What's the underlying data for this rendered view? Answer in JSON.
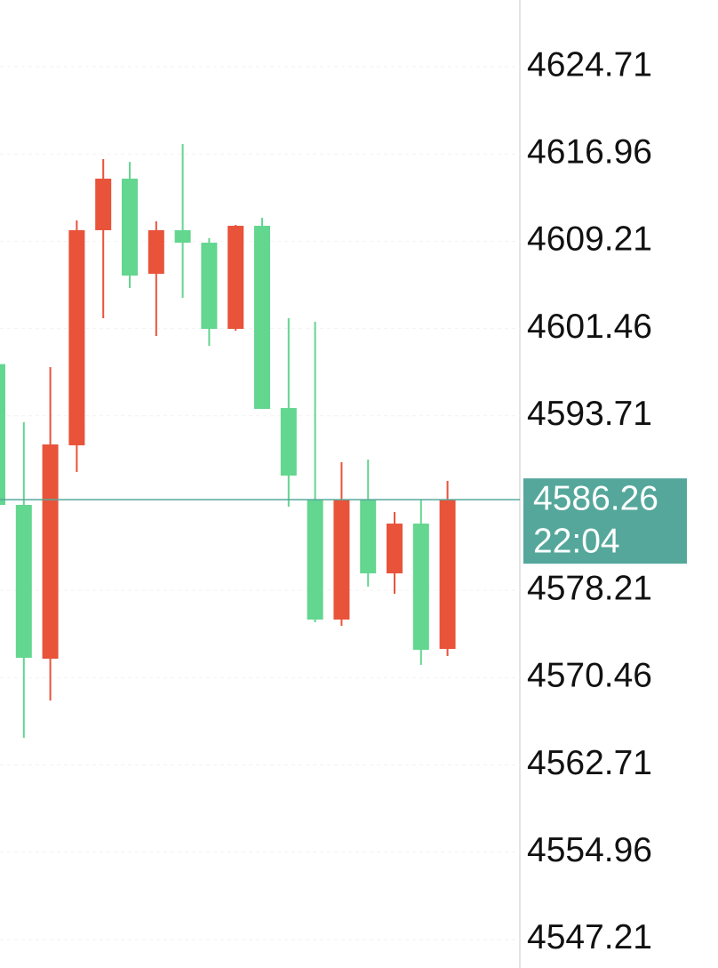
{
  "chart_data": {
    "type": "candlestick",
    "up_color": "#63d68f",
    "down_color": "#e8533a",
    "grid": true,
    "ylim": [
      4544.68,
      4630.63
    ],
    "yticks": [
      4624.71,
      4616.96,
      4609.21,
      4601.46,
      4593.71,
      4578.21,
      4570.46,
      4562.71,
      4554.96,
      4547.21
    ],
    "last_price": 4586.26,
    "last_time": "22:04",
    "last_color": "#55a79b",
    "candles": [
      {
        "open": 4585.8,
        "high": 4598.3,
        "low": 4585.8,
        "close": 4598.3
      },
      {
        "open": 4572.22,
        "high": 4593.14,
        "low": 4565.12,
        "close": 4585.8
      },
      {
        "open": 4591.17,
        "high": 4598.03,
        "low": 4568.43,
        "close": 4572.14
      },
      {
        "open": 4610.19,
        "high": 4611.06,
        "low": 4588.72,
        "close": 4591.09
      },
      {
        "open": 4614.77,
        "high": 4616.5,
        "low": 4602.37,
        "close": 4610.19
      },
      {
        "open": 4606.16,
        "high": 4616.26,
        "low": 4605.06,
        "close": 4614.77
      },
      {
        "open": 4610.19,
        "high": 4610.98,
        "low": 4600.8,
        "close": 4606.32
      },
      {
        "open": 4609.08,
        "high": 4617.84,
        "low": 4604.19,
        "close": 4610.19
      },
      {
        "open": 4601.43,
        "high": 4609.48,
        "low": 4599.93,
        "close": 4609.08
      },
      {
        "open": 4610.58,
        "high": 4610.66,
        "low": 4601.27,
        "close": 4601.43
      },
      {
        "open": 4594.32,
        "high": 4611.29,
        "low": 4594.32,
        "close": 4610.58
      },
      {
        "open": 4588.4,
        "high": 4602.37,
        "low": 4585.64,
        "close": 4594.4
      },
      {
        "open": 4575.62,
        "high": 4602.06,
        "low": 4575.38,
        "close": 4586.27
      },
      {
        "open": 4586.27,
        "high": 4589.59,
        "low": 4575.06,
        "close": 4575.62
      },
      {
        "open": 4579.72,
        "high": 4589.83,
        "low": 4578.54,
        "close": 4586.27
      },
      {
        "open": 4584.14,
        "high": 4585.17,
        "low": 4577.91,
        "close": 4579.72
      },
      {
        "open": 4572.93,
        "high": 4586.27,
        "low": 4571.59,
        "close": 4584.14
      },
      {
        "open": 4586.27,
        "high": 4587.93,
        "low": 4572.38,
        "close": 4573.01
      }
    ]
  }
}
